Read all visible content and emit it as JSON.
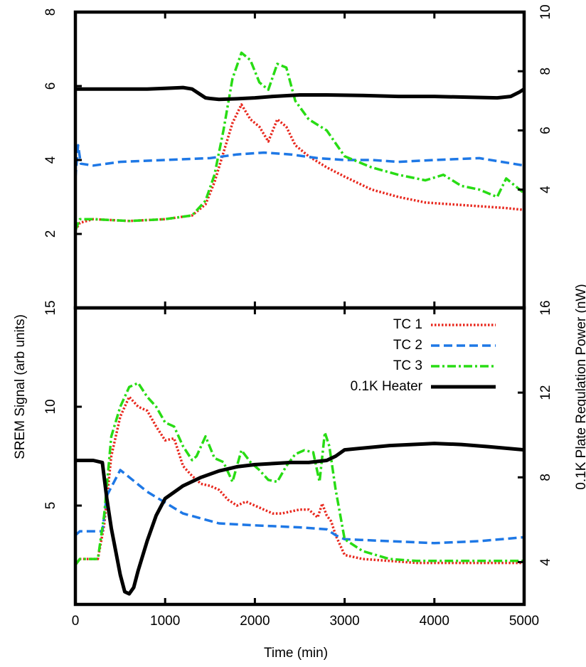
{
  "chart_data": {
    "layout": "two stacked panels sharing the x axis",
    "x_label": "Time (min)",
    "y_label_left": "SREM Signal (arb units)",
    "y_label_right": "0.1K Plate Regulation Power (nW)",
    "xlim": [
      0,
      5000
    ],
    "x_ticks": [
      "0",
      "1000",
      "2000",
      "3000",
      "4000",
      "5000"
    ],
    "grid": false,
    "legend": {
      "placement": "top-right of lower panel",
      "entries": [
        {
          "label": "TC 1",
          "color": "#e8281e",
          "dash": "dotted"
        },
        {
          "label": "TC 2",
          "color": "#1e78e6",
          "dash": "dashed"
        },
        {
          "label": "TC 3",
          "color": "#28dc14",
          "dash": "dash-dot"
        },
        {
          "label": "0.1K Heater",
          "color": "#000000",
          "dash": "solid"
        }
      ]
    },
    "panels": [
      {
        "id": "top",
        "type": "line",
        "left_ylim": [
          0,
          8
        ],
        "left_ticks": [
          "2",
          "4",
          "6",
          "8"
        ],
        "right_ylim": [
          0,
          10
        ],
        "right_ticks": [
          "4",
          "6",
          "8",
          "10"
        ],
        "series": [
          {
            "name": "TC 1",
            "axis": "left",
            "x": [
              0,
              50,
              200,
              600,
              1000,
              1300,
              1450,
              1550,
              1650,
              1750,
              1850,
              1950,
              2050,
              2150,
              2250,
              2350,
              2450,
              2600,
              2800,
              3000,
              3300,
              3600,
              3900,
              4200,
              4500,
              4800,
              5000
            ],
            "y": [
              2.1,
              2.3,
              2.4,
              2.35,
              2.4,
              2.5,
              2.8,
              3.4,
              4.2,
              5.0,
              5.5,
              5.1,
              4.9,
              4.5,
              5.1,
              4.9,
              4.4,
              4.1,
              3.8,
              3.55,
              3.2,
              3.0,
              2.85,
              2.8,
              2.75,
              2.7,
              2.65
            ]
          },
          {
            "name": "TC 2",
            "axis": "left",
            "x": [
              0,
              30,
              60,
              200,
              500,
              1000,
              1500,
              1800,
              2100,
              2400,
              2700,
              3000,
              3300,
              3600,
              4000,
              4500,
              5000
            ],
            "y": [
              3.5,
              4.4,
              3.9,
              3.85,
              3.95,
              4.0,
              4.05,
              4.15,
              4.2,
              4.15,
              4.05,
              4.0,
              4.0,
              3.95,
              4.0,
              4.05,
              3.85
            ]
          },
          {
            "name": "TC 3",
            "axis": "left",
            "x": [
              0,
              50,
              200,
              600,
              1000,
              1300,
              1450,
              1550,
              1650,
              1750,
              1850,
              1950,
              2050,
              2150,
              2250,
              2350,
              2450,
              2600,
              2800,
              3000,
              3300,
              3600,
              3900,
              4100,
              4300,
              4500,
              4700,
              4800,
              5000
            ],
            "y": [
              2.1,
              2.4,
              2.4,
              2.35,
              2.4,
              2.5,
              2.9,
              3.6,
              4.8,
              6.2,
              6.9,
              6.7,
              6.1,
              5.9,
              6.6,
              6.5,
              5.6,
              5.1,
              4.8,
              4.1,
              3.8,
              3.6,
              3.45,
              3.6,
              3.3,
              3.2,
              3.0,
              3.5,
              3.1
            ]
          },
          {
            "name": "0.1K Heater",
            "axis": "right",
            "x": [
              0,
              300,
              800,
              1000,
              1200,
              1300,
              1400,
              1450,
              1500,
              1600,
              1800,
              2000,
              2200,
              2500,
              2800,
              3200,
              3600,
              4000,
              4400,
              4700,
              4850,
              4950,
              5000
            ],
            "y": [
              7.4,
              7.4,
              7.4,
              7.42,
              7.45,
              7.4,
              7.2,
              7.1,
              7.08,
              7.05,
              7.07,
              7.1,
              7.15,
              7.2,
              7.2,
              7.18,
              7.15,
              7.15,
              7.12,
              7.1,
              7.15,
              7.3,
              7.4
            ]
          }
        ]
      },
      {
        "id": "bottom",
        "type": "line",
        "left_ylim": [
          0,
          15
        ],
        "left_ticks": [
          "5",
          "10",
          "15"
        ],
        "right_ylim": [
          2,
          16
        ],
        "right_ticks": [
          "4",
          "8",
          "12",
          "16"
        ],
        "series": [
          {
            "name": "TC 1",
            "axis": "left",
            "x": [
              0,
              50,
              250,
              320,
              400,
              500,
              600,
              700,
              800,
              900,
              1000,
              1100,
              1200,
              1300,
              1400,
              1500,
              1600,
              1700,
              1800,
              1900,
              2000,
              2100,
              2200,
              2300,
              2400,
              2500,
              2600,
              2700,
              2750,
              2800,
              2850,
              2900,
              3000,
              3200,
              3500,
              3800,
              4200,
              4600,
              5000
            ],
            "y": [
              2.0,
              2.3,
              2.3,
              4.0,
              7.5,
              9.5,
              10.5,
              10.0,
              9.8,
              9.0,
              8.3,
              8.4,
              7.0,
              6.5,
              6.1,
              6.0,
              5.8,
              5.3,
              5.0,
              5.2,
              5.0,
              4.8,
              4.6,
              4.6,
              4.7,
              4.8,
              4.8,
              4.4,
              5.1,
              4.5,
              4.2,
              3.5,
              2.5,
              2.3,
              2.2,
              2.1,
              2.1,
              2.1,
              2.1
            ]
          },
          {
            "name": "TC 2",
            "axis": "left",
            "x": [
              0,
              50,
              300,
              350,
              500,
              800,
              1200,
              1600,
              2000,
              2500,
              2800,
              2900,
              3000,
              3500,
              4000,
              4500,
              5000
            ],
            "y": [
              3.5,
              3.7,
              3.7,
              5.5,
              6.8,
              5.7,
              4.6,
              4.1,
              4.0,
              3.9,
              3.8,
              3.5,
              3.3,
              3.2,
              3.1,
              3.2,
              3.4
            ]
          },
          {
            "name": "TC 3",
            "axis": "left",
            "x": [
              0,
              50,
              250,
              320,
              400,
              500,
              600,
              700,
              800,
              900,
              1000,
              1100,
              1200,
              1300,
              1350,
              1450,
              1550,
              1650,
              1750,
              1850,
              1950,
              2050,
              2150,
              2250,
              2350,
              2450,
              2550,
              2650,
              2720,
              2780,
              2830,
              2900,
              3000,
              3200,
              3500,
              3800,
              4200,
              4600,
              5000
            ],
            "y": [
              2.0,
              2.3,
              2.3,
              4.5,
              8.5,
              10.0,
              11.0,
              11.2,
              10.5,
              10.0,
              9.2,
              9.0,
              8.0,
              7.3,
              7.5,
              8.5,
              7.4,
              7.2,
              6.2,
              7.8,
              7.2,
              6.8,
              6.3,
              6.2,
              7.0,
              7.6,
              7.8,
              7.7,
              6.2,
              8.7,
              8.0,
              5.8,
              3.3,
              2.7,
              2.3,
              2.2,
              2.2,
              2.2,
              2.2
            ]
          },
          {
            "name": "0.1K Heater",
            "axis": "right",
            "x": [
              0,
              200,
              300,
              350,
              400,
              450,
              500,
              550,
              600,
              650,
              700,
              800,
              900,
              1000,
              1200,
              1400,
              1600,
              1800,
              2000,
              2200,
              2400,
              2600,
              2700,
              2800,
              2900,
              3000,
              3500,
              4000,
              4300,
              4600,
              5000
            ],
            "y": [
              8.8,
              8.8,
              8.7,
              7.0,
              5.6,
              4.5,
              3.4,
              2.6,
              2.5,
              2.8,
              3.6,
              5.0,
              6.2,
              7.0,
              7.6,
              8.0,
              8.3,
              8.5,
              8.6,
              8.65,
              8.7,
              8.7,
              8.75,
              8.8,
              9.0,
              9.3,
              9.5,
              9.6,
              9.55,
              9.45,
              9.3
            ]
          }
        ]
      }
    ]
  }
}
